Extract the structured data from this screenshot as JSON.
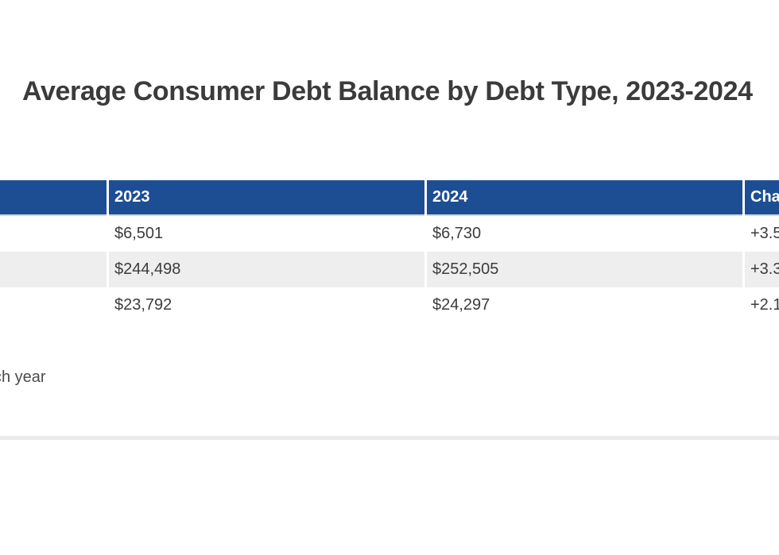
{
  "page": {
    "title": "Average Consumer Debt Balance by Debt Type, 2023-2024",
    "source_note_visible": "ch year"
  },
  "table": {
    "headers": [
      "",
      "2023",
      "2024",
      "Cha"
    ],
    "rows": [
      {
        "cells": [
          "",
          "$6,501",
          "$6,730",
          "+3.5"
        ]
      },
      {
        "cells": [
          "",
          "$244,498",
          "$252,505",
          "+3.3"
        ]
      },
      {
        "cells": [
          "",
          "$23,792",
          "$24,297",
          "+2.1"
        ]
      }
    ]
  },
  "colors": {
    "header_bg": "#1D4E94",
    "header_text": "#FFFFFF",
    "row_alt_bg": "#EEEEEE",
    "body_text": "#3C3C3C",
    "title_text": "#3B3B3B",
    "divider": "#EBEBEB"
  },
  "chart_data": {
    "type": "table",
    "title": "Average Consumer Debt Balance by Debt Type, 2023-2024",
    "columns": [
      "2023",
      "2024",
      "Cha"
    ],
    "rows": [
      [
        "$6,501",
        "$6,730",
        "+3.5"
      ],
      [
        "$244,498",
        "$252,505",
        "+3.3"
      ],
      [
        "$23,792",
        "$24,297",
        "+2.1"
      ]
    ],
    "layout": {
      "cropped_left_label_column": true,
      "cropped_right_change_column": true,
      "alternating_row_shading": true,
      "header_style": "blue-bar"
    },
    "source_note_visible_fragment": "ch year"
  }
}
